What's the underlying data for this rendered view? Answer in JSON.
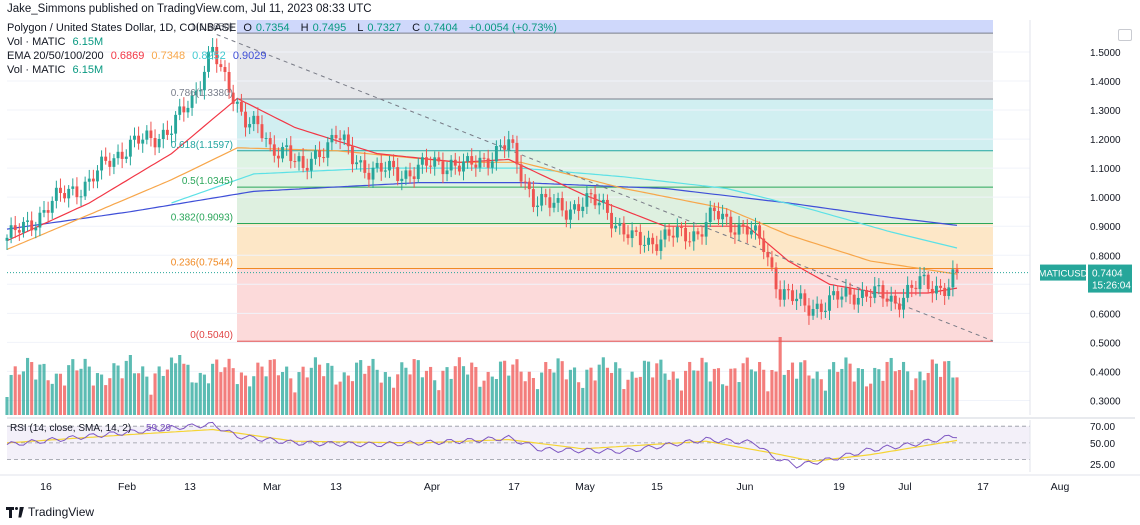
{
  "publisher_line": "Jake_Simmons published on TradingView.com, Jul 11, 2023 08:33 UTC",
  "legend": {
    "title": "Polygon / United States Dollar, 1D, COINBASE",
    "ohlc": [
      {
        "label": "O",
        "value": "0.7354"
      },
      {
        "label": "H",
        "value": "0.7495"
      },
      {
        "label": "L",
        "value": "0.7327"
      },
      {
        "label": "C",
        "value": "0.7404"
      }
    ],
    "change": "+0.0054 (+0.73%)",
    "vol_label": "Vol · MATIC",
    "vol_value": "6.15M",
    "ema_label": "EMA 20/50/100/200",
    "ema_values": [
      "0.6869",
      "0.7348",
      "0.8252",
      "0.9029"
    ],
    "vol2_label": "Vol · MATIC",
    "vol2_value": "6.15M"
  },
  "colors": {
    "up": "#26a69a",
    "down": "#ef5350",
    "ema20": "#f23645",
    "ema50": "#f7a64a",
    "ema100": "#5ce1e6",
    "ema200": "#3f4fd8",
    "rsi": "#7e57c2",
    "rsi_sma": "#f5d434"
  },
  "chart_data": {
    "type": "candlestick",
    "symbol": "MATICUSD",
    "last_price": "0.7404",
    "countdown": "15:26:04",
    "price_axis_ticks": [
      "1.5000",
      "1.4000",
      "1.3000",
      "1.2000",
      "1.1000",
      "1.0000",
      "0.9000",
      "0.8000",
      "0.7000",
      "0.6000",
      "0.5000",
      "0.4000",
      "0.3000"
    ],
    "price_range": [
      0.25,
      1.61
    ],
    "x_ticks": [
      "16",
      "Feb",
      "13",
      "Mar",
      "13",
      "Apr",
      "17",
      "May",
      "15",
      "Jun",
      "19",
      "Jul",
      "17",
      "Aug"
    ],
    "fib_levels": [
      {
        "label": "1(1.5650)",
        "price": 1.565
      },
      {
        "label": "0.786(1.3380)",
        "price": 1.338
      },
      {
        "label": "0.618(1.1597)",
        "price": 1.1597
      },
      {
        "label": "0.5(1.0345)",
        "price": 1.0345
      },
      {
        "label": "0.382(0.9093)",
        "price": 0.9093
      },
      {
        "label": "0.236(0.7544)",
        "price": 0.7544
      },
      {
        "label": "0(0.5040)",
        "price": 0.504
      }
    ],
    "price_keypoints": [
      [
        0,
        0.86
      ],
      [
        5,
        0.9
      ],
      [
        10,
        0.97
      ],
      [
        15,
        1.02
      ],
      [
        20,
        1.05
      ],
      [
        25,
        1.13
      ],
      [
        30,
        1.18
      ],
      [
        35,
        1.2
      ],
      [
        40,
        1.24
      ],
      [
        45,
        1.33
      ],
      [
        48,
        1.45
      ],
      [
        50,
        1.52
      ],
      [
        52,
        1.42
      ],
      [
        55,
        1.34
      ],
      [
        58,
        1.28
      ],
      [
        61,
        1.24
      ],
      [
        64,
        1.15
      ],
      [
        68,
        1.18
      ],
      [
        72,
        1.08
      ],
      [
        76,
        1.16
      ],
      [
        80,
        1.22
      ],
      [
        84,
        1.13
      ],
      [
        88,
        1.1
      ],
      [
        92,
        1.09
      ],
      [
        96,
        1.08
      ],
      [
        100,
        1.1
      ],
      [
        104,
        1.11
      ],
      [
        108,
        1.12
      ],
      [
        112,
        1.1
      ],
      [
        116,
        1.13
      ],
      [
        120,
        1.17
      ],
      [
        122,
        1.18
      ],
      [
        125,
        1.08
      ],
      [
        128,
        1.0
      ],
      [
        132,
        0.97
      ],
      [
        136,
        0.96
      ],
      [
        140,
        0.98
      ],
      [
        144,
        0.98
      ],
      [
        146,
        0.96
      ],
      [
        148,
        0.91
      ],
      [
        152,
        0.85
      ],
      [
        156,
        0.85
      ],
      [
        160,
        0.86
      ],
      [
        164,
        0.87
      ],
      [
        168,
        0.88
      ],
      [
        172,
        0.94
      ],
      [
        176,
        0.91
      ],
      [
        180,
        0.89
      ],
      [
        184,
        0.83
      ],
      [
        186,
        0.75
      ],
      [
        188,
        0.68
      ],
      [
        190,
        0.66
      ],
      [
        194,
        0.62
      ],
      [
        198,
        0.63
      ],
      [
        202,
        0.65
      ],
      [
        206,
        0.67
      ],
      [
        210,
        0.67
      ],
      [
        214,
        0.65
      ],
      [
        216,
        0.64
      ],
      [
        218,
        0.67
      ],
      [
        222,
        0.7
      ],
      [
        226,
        0.69
      ],
      [
        229,
        0.7
      ],
      [
        231,
        0.74
      ]
    ],
    "ema_keypoints": {
      "ema20": [
        [
          0,
          0.85
        ],
        [
          20,
          0.98
        ],
        [
          40,
          1.15
        ],
        [
          56,
          1.34
        ],
        [
          70,
          1.24
        ],
        [
          90,
          1.15
        ],
        [
          110,
          1.12
        ],
        [
          122,
          1.13
        ],
        [
          140,
          1.01
        ],
        [
          160,
          0.9
        ],
        [
          180,
          0.9
        ],
        [
          190,
          0.78
        ],
        [
          200,
          0.7
        ],
        [
          212,
          0.67
        ],
        [
          224,
          0.67
        ],
        [
          231,
          0.687
        ]
      ],
      "ema50": [
        [
          0,
          0.82
        ],
        [
          20,
          0.94
        ],
        [
          40,
          1.06
        ],
        [
          56,
          1.17
        ],
        [
          80,
          1.16
        ],
        [
          110,
          1.12
        ],
        [
          125,
          1.12
        ],
        [
          150,
          1.03
        ],
        [
          175,
          0.96
        ],
        [
          190,
          0.87
        ],
        [
          210,
          0.78
        ],
        [
          231,
          0.735
        ]
      ],
      "ema100": [
        [
          40,
          0.98
        ],
        [
          60,
          1.08
        ],
        [
          90,
          1.1
        ],
        [
          125,
          1.1
        ],
        [
          150,
          1.07
        ],
        [
          175,
          1.03
        ],
        [
          195,
          0.96
        ],
        [
          215,
          0.88
        ],
        [
          231,
          0.825
        ]
      ],
      "ema200": [
        [
          0,
          0.89
        ],
        [
          30,
          0.95
        ],
        [
          60,
          1.02
        ],
        [
          100,
          1.05
        ],
        [
          125,
          1.05
        ],
        [
          160,
          1.03
        ],
        [
          190,
          0.98
        ],
        [
          215,
          0.93
        ],
        [
          231,
          0.903
        ]
      ]
    },
    "rsi": {
      "label": "RSI (14, close, SMA, 14, 2)",
      "value_a": "59.29",
      "levels": [
        "70.00",
        "50.00",
        "25.00"
      ],
      "keypoints": [
        [
          0,
          48
        ],
        [
          20,
          58
        ],
        [
          40,
          68
        ],
        [
          50,
          72
        ],
        [
          56,
          58
        ],
        [
          70,
          50
        ],
        [
          90,
          48
        ],
        [
          110,
          52
        ],
        [
          122,
          56
        ],
        [
          130,
          42
        ],
        [
          150,
          40
        ],
        [
          170,
          54
        ],
        [
          182,
          50
        ],
        [
          186,
          34
        ],
        [
          192,
          23
        ],
        [
          200,
          30
        ],
        [
          210,
          42
        ],
        [
          220,
          48
        ],
        [
          231,
          59
        ]
      ],
      "sma_keypoints": [
        [
          0,
          50
        ],
        [
          30,
          60
        ],
        [
          50,
          66
        ],
        [
          70,
          52
        ],
        [
          100,
          50
        ],
        [
          122,
          54
        ],
        [
          140,
          43
        ],
        [
          170,
          52
        ],
        [
          186,
          38
        ],
        [
          196,
          28
        ],
        [
          210,
          36
        ],
        [
          231,
          53
        ]
      ]
    }
  },
  "brand": "TradingView"
}
